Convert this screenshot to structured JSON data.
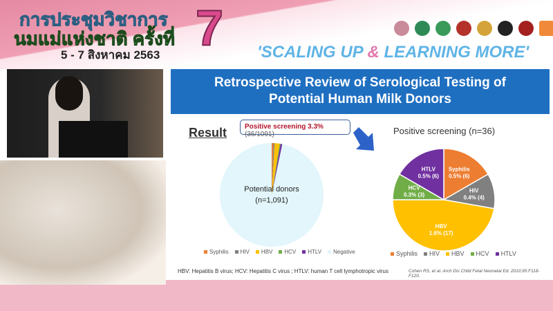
{
  "header": {
    "thai_line1": "การประชุมวิชาการ",
    "thai_line2": "นมแม่แห่งชาติ ครั้งที่",
    "thai_date": "5 - 7 สิงหาคม 2563",
    "edition_number": "7",
    "slogan_part1": "'SCALING UP ",
    "slogan_amp": "&",
    "slogan_part2": " LEARNING MORE'",
    "logos": [
      "logo-1",
      "logo-2",
      "logo-3",
      "logo-4",
      "logo-5",
      "logo-6",
      "logo-7",
      "logo-8"
    ]
  },
  "slide": {
    "title_line1": "Retrospective Review of Serological Testing of",
    "title_line2": "Potential Human Milk Donors",
    "result_heading": "Result",
    "callout_bold": "Positive screening 3.3%",
    "callout_rest": " (36/1091)",
    "footnote": "HBV: Hepatitis B virus; HCV: Hepatitis C virus ; HTLV: human T cell lymphotropic virus",
    "citation": "Cohen RS, et al. Arch Dis Child Fetal Neonatal Ed. 2010;95:F118-F120."
  },
  "colors": {
    "Syphilis": "#ed7d31",
    "HIV": "#808080",
    "HBV": "#ffc000",
    "HCV": "#70ad47",
    "HTLV": "#7030a0",
    "Negative": "#e2f6fb",
    "banner": "#1f6fc1"
  },
  "chart_data": [
    {
      "type": "pie",
      "center_label_line1": "Potential donors",
      "center_label_line2": "(n=1,091)",
      "categories": [
        "Syphilis",
        "HIV",
        "HBV",
        "HCV",
        "HTLV",
        "Negative"
      ],
      "values": [
        6,
        4,
        17,
        3,
        6,
        1055
      ],
      "legend": "bottom"
    },
    {
      "type": "pie",
      "title": "Positive screening (n=36)",
      "categories": [
        "Syphilis",
        "HIV",
        "HBV",
        "HCV",
        "HTLV"
      ],
      "values": [
        6,
        4,
        17,
        3,
        6
      ],
      "data_labels": [
        [
          "Syphilis",
          "0.5% (6)"
        ],
        [
          "HIV",
          "0.4% (4)"
        ],
        [
          "HBV",
          "1.6% (17)"
        ],
        [
          "HCV",
          "0.3% (3)"
        ],
        [
          "HTLV",
          "0.5% (6)"
        ]
      ],
      "legend": "bottom"
    }
  ]
}
